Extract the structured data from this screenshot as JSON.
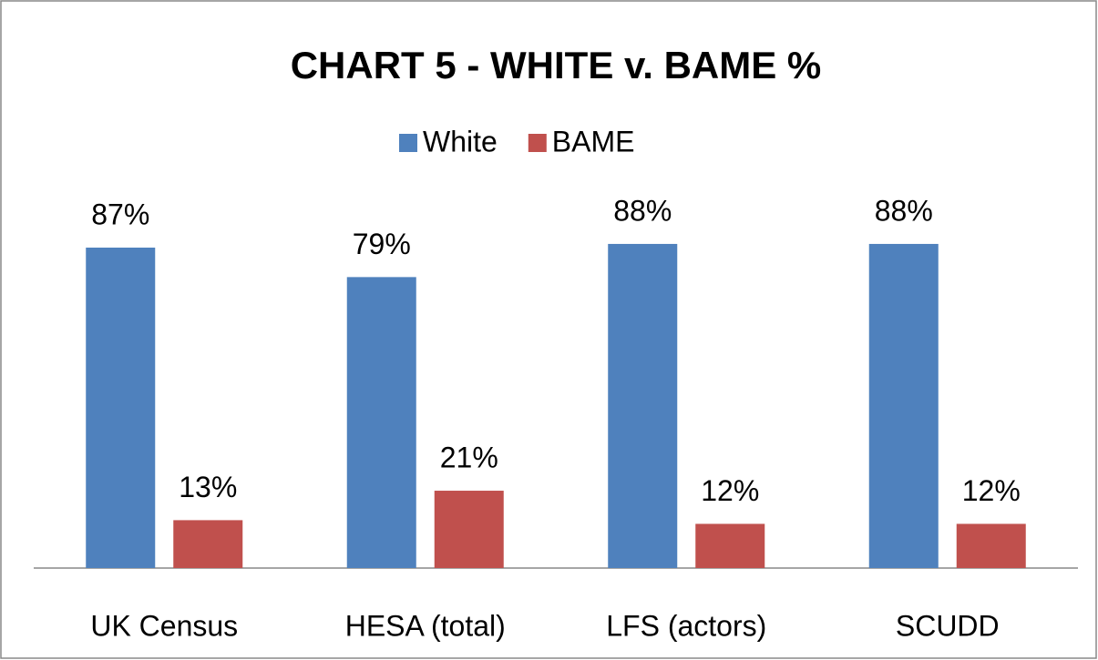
{
  "chart_data": {
    "type": "bar",
    "title": "CHART 5 - WHITE v. BAME %",
    "categories": [
      "UK Census",
      "HESA (total)",
      "LFS (actors)",
      "SCUDD"
    ],
    "series": [
      {
        "name": "White",
        "color": "#4f81bd",
        "values": [
          87,
          79,
          88,
          88
        ],
        "value_labels": [
          "87%",
          "79%",
          "88%",
          "88%"
        ]
      },
      {
        "name": "BAME",
        "color": "#c0504d",
        "values": [
          13,
          21,
          12,
          12
        ],
        "value_labels": [
          "13%",
          "21%",
          "12%",
          "12%"
        ]
      }
    ],
    "legend": "top"
  }
}
